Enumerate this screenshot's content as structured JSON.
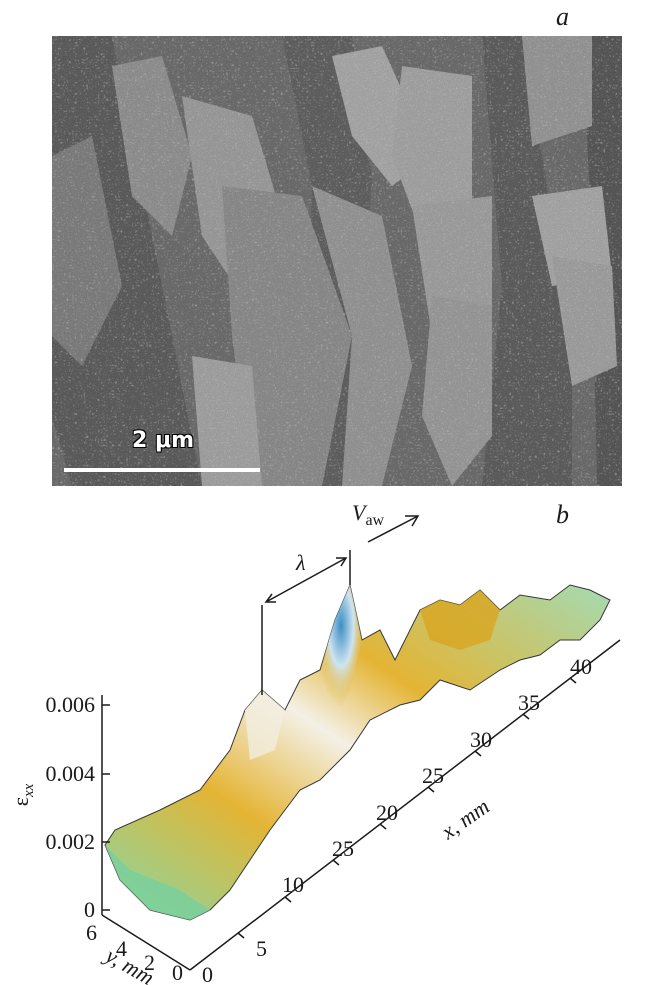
{
  "figure": {
    "panel_a_label": "a",
    "panel_b_label": "b"
  },
  "micrograph": {
    "scale_bar_label": "2 μm"
  },
  "chart_data": {
    "type": "surface3d",
    "title": "",
    "zlabel": "ε",
    "zlabel_sub": "xx",
    "xlabel": "x, mm",
    "ylabel": "y, mm",
    "wave_label": "λ",
    "velocity_label": "V",
    "velocity_sub": "aw",
    "z_ticks": [
      "0",
      "0.002",
      "0.004",
      "0.006"
    ],
    "x_ticks": [
      "5",
      "10",
      "25",
      "20",
      "25",
      "30",
      "35",
      "40"
    ],
    "y_ticks": [
      "6",
      "4",
      "2",
      "0"
    ],
    "origin_tick": "0",
    "zlim": [
      0,
      0.006
    ],
    "xlim": [
      0,
      40
    ],
    "ylim": [
      0,
      6
    ],
    "colormap": [
      "#7fd7a4",
      "#e3b12a",
      "#f4f0e6",
      "#3b8fc4"
    ]
  }
}
